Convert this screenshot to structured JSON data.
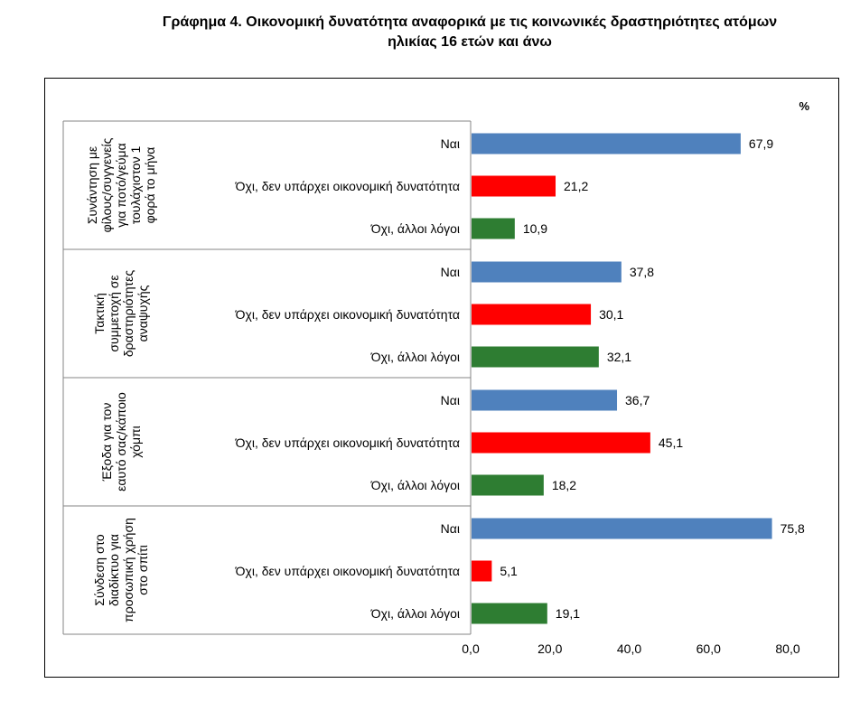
{
  "title_line1": "Γράφημα 4. Οικονομική δυνατότητα αναφορικά με τις κοινωνικές δραστηριότητες ατόμων",
  "title_line2": "ηλικίας 16 ετών και άνω",
  "colors": {
    "yes": "#4F81BD",
    "no_money": "#FF0000",
    "no_other": "#2E7D32"
  },
  "chart_data": {
    "type": "bar",
    "orientation": "horizontal",
    "unit_label": "%",
    "xlim": [
      0,
      80
    ],
    "x_ticks": [
      "0,0",
      "20,0",
      "40,0",
      "60,0",
      "80,0"
    ],
    "bar_labels": [
      "Ναι",
      "Όχι, δεν υπάρχει οικονομική δυνατότητα",
      "Όχι, άλλοι λόγοι"
    ],
    "groups": [
      {
        "name_lines": [
          "Συνάντηση με",
          "φίλους/συγγενείς",
          "για ποτό/γεύμα",
          "τουλάχιστον 1",
          "φορά το μήνα"
        ],
        "values": [
          67.9,
          21.2,
          10.9
        ],
        "value_labels": [
          "67,9",
          "21,2",
          "10,9"
        ]
      },
      {
        "name_lines": [
          "Τακτική",
          "συμμετοχή σε",
          "δραστηριότητες",
          "αναψυχής"
        ],
        "values": [
          37.8,
          30.1,
          32.1
        ],
        "value_labels": [
          "37,8",
          "30,1",
          "32,1"
        ]
      },
      {
        "name_lines": [
          "Έξοδα για τον",
          "εαυτό σας/κάποιο",
          "χόμπι"
        ],
        "values": [
          36.7,
          45.1,
          18.2
        ],
        "value_labels": [
          "36,7",
          "45,1",
          "18,2"
        ]
      },
      {
        "name_lines": [
          "Σύνδεση στο",
          "διαδίκτυο για",
          "προσωπική χρήση",
          "στο σπίτι"
        ],
        "values": [
          75.8,
          5.1,
          19.1
        ],
        "value_labels": [
          "75,8",
          "5,1",
          "19,1"
        ]
      }
    ]
  }
}
